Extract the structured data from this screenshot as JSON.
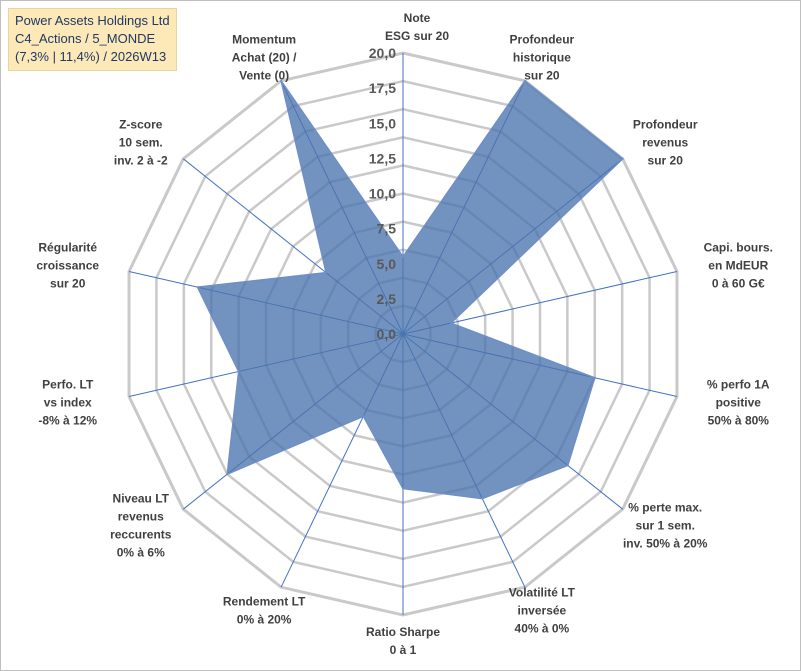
{
  "title": {
    "line1": "Power Assets Holdings Ltd",
    "line2": "C4_Actions / 5_MONDE",
    "line3": "(7,3% | 11,4%) / 2026W13"
  },
  "chart_data": {
    "type": "radar",
    "rmin": 0,
    "rmax": 20,
    "grid": true,
    "tick_values": [
      0,
      2.5,
      5,
      7.5,
      10,
      12.5,
      15,
      17.5,
      20
    ],
    "tick_labels": [
      "0,0",
      "2,5",
      "5,0",
      "7,5",
      "10,0",
      "12,5",
      "15,0",
      "17,5",
      "20,0"
    ],
    "axes": [
      {
        "label": [
          "Note",
          "ESG sur 20"
        ],
        "value": 5.5
      },
      {
        "label": [
          "Profondeur",
          "historique",
          "sur 20"
        ],
        "value": 20
      },
      {
        "label": [
          "Profondeur",
          "revenus",
          "sur 20"
        ],
        "value": 20
      },
      {
        "label": [
          "Capi. bours.",
          "en MdEUR",
          "0 à 60 G€"
        ],
        "value": 3.5
      },
      {
        "label": [
          "% perfo 1A",
          "positive",
          "50% à 80%"
        ],
        "value": 14
      },
      {
        "label": [
          "% perte max.",
          "sur 1 sem.",
          "inv. 50% à 20%"
        ],
        "value": 15
      },
      {
        "label": [
          "Volatilité LT",
          "inversée",
          "40% à 0%"
        ],
        "value": 13
      },
      {
        "label": [
          "Ratio Sharpe",
          "0 à 1"
        ],
        "value": 11
      },
      {
        "label": [
          "Rendement LT",
          "0% à 20%"
        ],
        "value": 6.5
      },
      {
        "label": [
          "Niveau LT",
          "revenus",
          "reccurents",
          "0% à 6%"
        ],
        "value": 16
      },
      {
        "label": [
          "Perfo. LT",
          "vs index",
          "-8% à 12%"
        ],
        "value": 12
      },
      {
        "label": [
          "Régularité",
          "croissance",
          "sur 20"
        ],
        "value": 15
      },
      {
        "label": [
          "Z-score",
          "10 sem.",
          "inv. 2 à -2"
        ],
        "value": 7
      },
      {
        "label": [
          "Momentum",
          "Achat (20) /",
          "Vente (0)"
        ],
        "value": 20
      }
    ],
    "colors": {
      "fill": "#4a74ad",
      "stroke": "#6f8fc7",
      "grid": "#c9c9c9",
      "spoke": "#4472c4"
    }
  }
}
